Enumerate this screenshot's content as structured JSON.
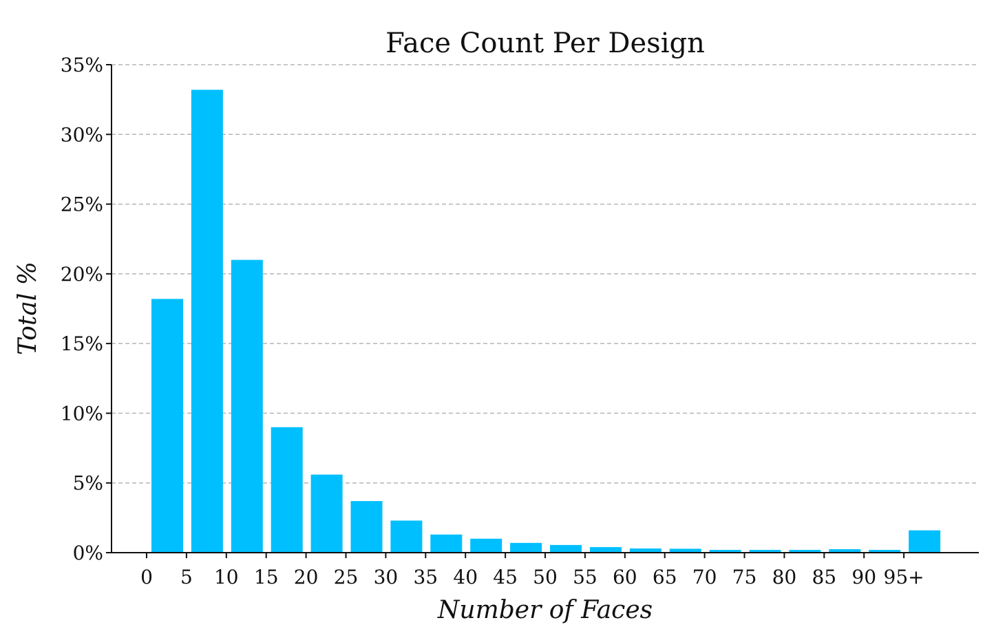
{
  "chart_data": {
    "type": "bar",
    "title": "Face Count Per Design",
    "xlabel": "Number of Faces",
    "ylabel": "Total %",
    "categories": [
      "0",
      "5",
      "10",
      "15",
      "20",
      "25",
      "30",
      "35",
      "40",
      "45",
      "50",
      "55",
      "60",
      "65",
      "70",
      "75",
      "80",
      "85",
      "90",
      "95+"
    ],
    "values": [
      18.2,
      33.2,
      21.0,
      9.0,
      5.6,
      3.7,
      2.3,
      1.3,
      1.0,
      0.7,
      0.55,
      0.4,
      0.3,
      0.28,
      0.2,
      0.2,
      0.2,
      0.25,
      0.2,
      1.6
    ],
    "ylim": [
      0,
      35
    ],
    "yticks": [
      0,
      5,
      10,
      15,
      20,
      25,
      30,
      35
    ],
    "ytick_labels": [
      "0%",
      "5%",
      "10%",
      "15%",
      "20%",
      "25%",
      "30%",
      "35%"
    ],
    "grid": true,
    "bar_color": "#00bfff"
  }
}
